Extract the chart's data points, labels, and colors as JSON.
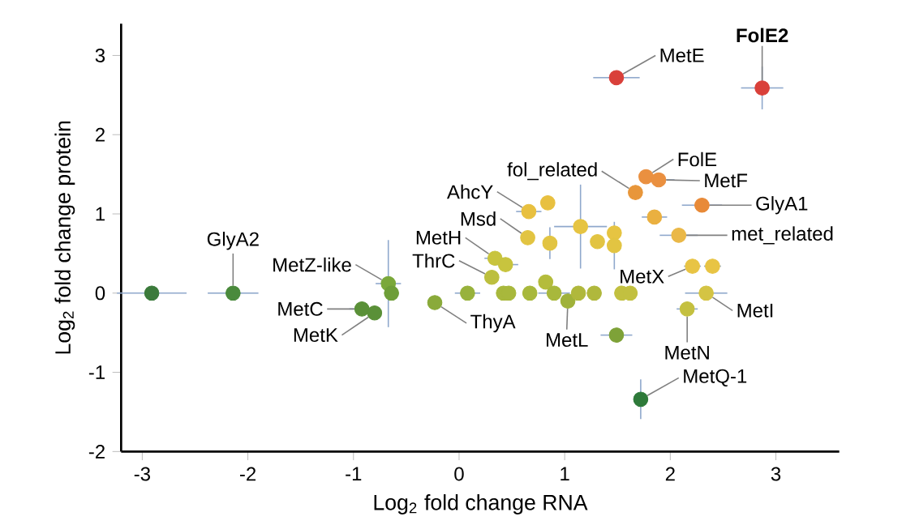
{
  "chart_data": {
    "type": "scatter",
    "xlabel": "Log$_{2}$ fold change RNA",
    "ylabel": "Log$_{2}$ fold change protein",
    "x": [
      -2.91,
      -2.14,
      -0.67,
      -0.64,
      -0.92,
      -0.8,
      -0.23,
      0.08,
      0.34,
      0.31,
      0.44,
      0.42,
      0.47,
      0.67,
      0.82,
      0.9,
      1.03,
      1.13,
      1.28,
      1.54,
      1.62,
      1.49,
      1.72,
      0.66,
      0.84,
      0.65,
      0.86,
      1.15,
      1.31,
      1.47,
      1.47,
      1.67,
      1.77,
      1.89,
      1.85,
      2.08,
      2.3,
      2.21,
      2.4,
      2.34,
      2.16,
      1.49,
      2.87
    ],
    "values": [
      0,
      0,
      0.12,
      0,
      -0.2,
      -0.25,
      -0.12,
      0,
      0.44,
      0.2,
      0.36,
      0,
      0,
      0,
      0.14,
      0,
      -0.1,
      0,
      0,
      0,
      0,
      -0.53,
      -1.34,
      1.03,
      1.14,
      0.7,
      0.63,
      0.84,
      0.65,
      0.76,
      0.6,
      1.27,
      1.47,
      1.43,
      0.96,
      0.73,
      1.11,
      0.34,
      0.34,
      0,
      -0.2,
      2.72,
      2.59
    ],
    "colors": [
      "#3b7a3b",
      "#4a8a3c",
      "#7aa83a",
      "#6e9e38",
      "#5a9038",
      "#5a9038",
      "#8aaa3a",
      "#98b23c",
      "#c8c43e",
      "#bcbf3e",
      "#c8c43e",
      "#a8b83c",
      "#a8b83c",
      "#a8b83c",
      "#b4bc3c",
      "#a8b83c",
      "#a0b23a",
      "#b0b83c",
      "#b0b83c",
      "#c2c040",
      "#c2c040",
      "#7ea238",
      "#2e7a3a",
      "#e8c040",
      "#e8c040",
      "#e2c442",
      "#e2c442",
      "#e6c442",
      "#e2c442",
      "#e6c442",
      "#e2c442",
      "#e8963a",
      "#ea9040",
      "#ea9040",
      "#eab040",
      "#eab848",
      "#e88a38",
      "#e8c444",
      "#e8c444",
      "#d4c444",
      "#c4c040",
      "#d9403a",
      "#d9403a"
    ],
    "xerrors": [
      0.33,
      0.24,
      0.12,
      null,
      0.12,
      null,
      null,
      0.12,
      0.1,
      null,
      0.12,
      null,
      null,
      null,
      null,
      0.15,
      null,
      null,
      null,
      null,
      null,
      0.15,
      null,
      0.12,
      null,
      null,
      null,
      0.25,
      null,
      null,
      null,
      null,
      null,
      0.15,
      0.12,
      0.18,
      0.19,
      0.08,
      0.08,
      0.2,
      0.1,
      0.22,
      0.2
    ],
    "errors": [
      null,
      null,
      0.55,
      null,
      null,
      null,
      null,
      null,
      null,
      null,
      null,
      null,
      null,
      null,
      null,
      null,
      null,
      null,
      null,
      null,
      null,
      null,
      0.25,
      null,
      null,
      null,
      0.2,
      0.53,
      null,
      null,
      0.3,
      null,
      null,
      null,
      null,
      null,
      null,
      null,
      null,
      null,
      null,
      null,
      0.27
    ],
    "xlim": [
      -3.2,
      3.6
    ],
    "ylim": [
      -2,
      3.4
    ],
    "xticks": [
      -3,
      -2,
      -1,
      0,
      1,
      2,
      3
    ],
    "yticks": [
      -2,
      -1,
      0,
      1,
      2,
      3
    ],
    "annotations": [
      {
        "text": "GlyA2",
        "x": -2.14,
        "y": 0
      },
      {
        "text": "MetZ-like",
        "x": -0.67,
        "y": 0.12
      },
      {
        "text": "MetC",
        "x": -0.92,
        "y": -0.2
      },
      {
        "text": "MetK",
        "x": -0.8,
        "y": -0.25
      },
      {
        "text": "ThyA",
        "x": -0.23,
        "y": -0.12
      },
      {
        "text": "MetH",
        "x": 0.34,
        "y": 0.44
      },
      {
        "text": "ThrC",
        "x": 0.31,
        "y": 0.2
      },
      {
        "text": "AhcY",
        "x": 0.66,
        "y": 1.03
      },
      {
        "text": "Msd",
        "x": 0.65,
        "y": 0.7
      },
      {
        "text": "fol_related",
        "x": 1.67,
        "y": 1.27
      },
      {
        "text": "FolE",
        "x": 1.77,
        "y": 1.47
      },
      {
        "text": "MetF",
        "x": 1.89,
        "y": 1.43
      },
      {
        "text": "GlyA1",
        "x": 2.3,
        "y": 1.11
      },
      {
        "text": "met_related",
        "x": 2.08,
        "y": 0.73
      },
      {
        "text": "MetX",
        "x": 2.21,
        "y": 0.34
      },
      {
        "text": "MetI",
        "x": 2.34,
        "y": 0
      },
      {
        "text": "MetN",
        "x": 2.16,
        "y": -0.2
      },
      {
        "text": "MetL",
        "x": 1.03,
        "y": -0.1
      },
      {
        "text": "MetQ-1",
        "x": 1.72,
        "y": -1.34
      },
      {
        "text": "MetE",
        "x": 1.49,
        "y": 2.72
      },
      {
        "text": "**FolE2**",
        "x": 2.87,
        "y": 2.59
      }
    ]
  }
}
